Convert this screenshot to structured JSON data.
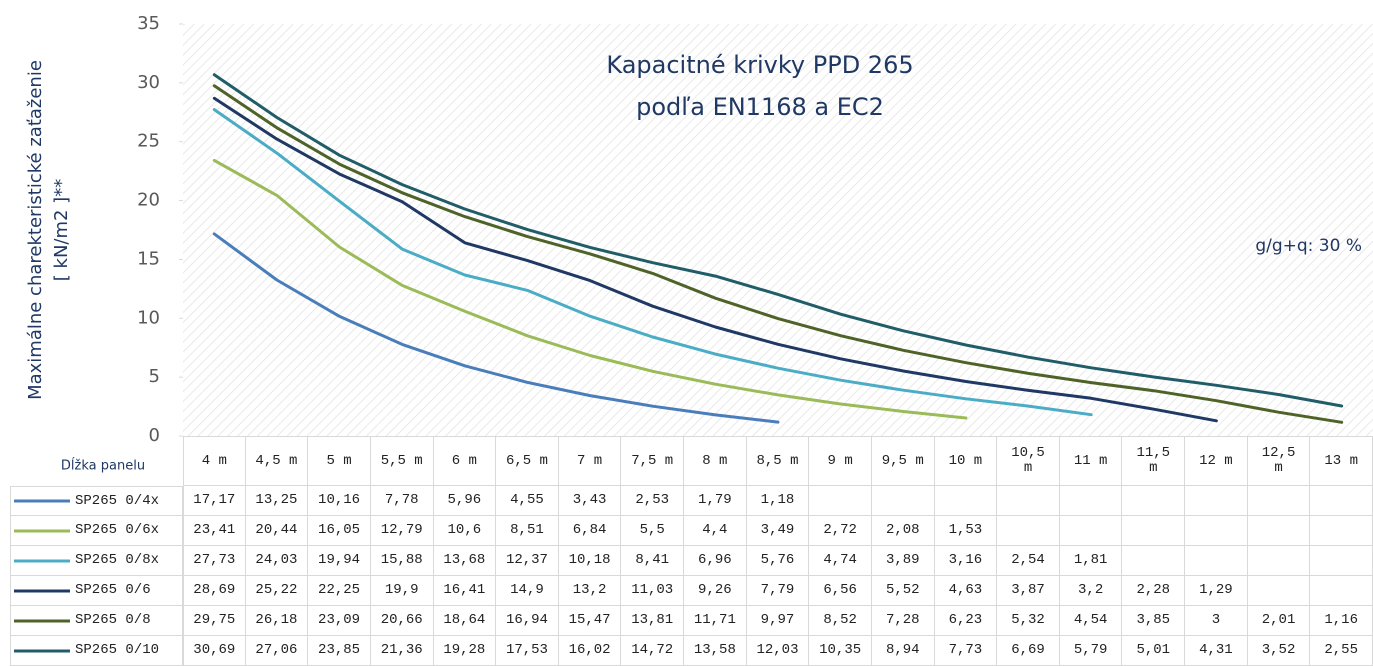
{
  "chart_data": {
    "type": "line",
    "title": [
      "Kapacitné krivky PPD 265",
      "podľa EN1168 a EC2"
    ],
    "y_label": [
      "Maximálne charekteristické zaťaženie",
      "[ kN/m2 ]**"
    ],
    "x_label": "Dĺžka panelu",
    "annotation": "g/g+q: 30 %",
    "categories": [
      "4 m",
      "4,5 m",
      "5 m",
      "5,5 m",
      "6 m",
      "6,5 m",
      "7 m",
      "7,5 m",
      "8 m",
      "8,5 m",
      "9 m",
      "9,5 m",
      "10 m",
      "10,5 m",
      "11 m",
      "11,5 m",
      "12 m",
      "12,5 m",
      "13 m"
    ],
    "ylim": [
      0,
      35
    ],
    "yticks": [
      0,
      5,
      10,
      15,
      20,
      25,
      30,
      35
    ],
    "series": [
      {
        "name": "SP265 0/4x",
        "color": "#4a7ebb",
        "values": [
          17.17,
          13.25,
          10.16,
          7.78,
          5.96,
          4.55,
          3.43,
          2.53,
          1.79,
          1.18,
          null,
          null,
          null,
          null,
          null,
          null,
          null,
          null,
          null
        ],
        "value_labels": [
          "17,17",
          "13,25",
          "10,16",
          "7,78",
          "5,96",
          "4,55",
          "3,43",
          "2,53",
          "1,79",
          "1,18",
          null,
          null,
          null,
          null,
          null,
          null,
          null,
          null,
          null
        ]
      },
      {
        "name": "SP265 0/6x",
        "color": "#9bbb59",
        "values": [
          23.41,
          20.44,
          16.05,
          12.79,
          10.6,
          8.51,
          6.84,
          5.5,
          4.4,
          3.49,
          2.72,
          2.08,
          1.53,
          null,
          null,
          null,
          null,
          null,
          null
        ],
        "value_labels": [
          "23,41",
          "20,44",
          "16,05",
          "12,79",
          "10,6",
          "8,51",
          "6,84",
          "5,5",
          "4,4",
          "3,49",
          "2,72",
          "2,08",
          "1,53",
          null,
          null,
          null,
          null,
          null,
          null
        ]
      },
      {
        "name": "SP265 0/8x",
        "color": "#4bacc6",
        "values": [
          27.73,
          24.03,
          19.94,
          15.88,
          13.68,
          12.37,
          10.18,
          8.41,
          6.96,
          5.76,
          4.74,
          3.89,
          3.16,
          2.54,
          1.81,
          null,
          null,
          null,
          null
        ],
        "value_labels": [
          "27,73",
          "24,03",
          "19,94",
          "15,88",
          "13,68",
          "12,37",
          "10,18",
          "8,41",
          "6,96",
          "5,76",
          "4,74",
          "3,89",
          "3,16",
          "2,54",
          "1,81",
          null,
          null,
          null,
          null
        ]
      },
      {
        "name": "SP265 0/6",
        "color": "#1f3864",
        "values": [
          28.69,
          25.22,
          22.25,
          19.9,
          16.41,
          14.9,
          13.2,
          11.03,
          9.26,
          7.79,
          6.56,
          5.52,
          4.63,
          3.87,
          3.2,
          2.28,
          1.29,
          null,
          null
        ],
        "value_labels": [
          "28,69",
          "25,22",
          "22,25",
          "19,9",
          "16,41",
          "14,9",
          "13,2",
          "11,03",
          "9,26",
          "7,79",
          "6,56",
          "5,52",
          "4,63",
          "3,87",
          "3,2",
          "2,28",
          "1,29",
          null,
          null
        ]
      },
      {
        "name": "SP265 0/8",
        "color": "#4f6228",
        "values": [
          29.75,
          26.18,
          23.09,
          20.66,
          18.64,
          16.94,
          15.47,
          13.81,
          11.71,
          9.97,
          8.52,
          7.28,
          6.23,
          5.32,
          4.54,
          3.85,
          3,
          2.01,
          1.16
        ],
        "value_labels": [
          "29,75",
          "26,18",
          "23,09",
          "20,66",
          "18,64",
          "16,94",
          "15,47",
          "13,81",
          "11,71",
          "9,97",
          "8,52",
          "7,28",
          "6,23",
          "5,32",
          "4,54",
          "3,85",
          "3",
          "2,01",
          "1,16"
        ]
      },
      {
        "name": "SP265 0/10",
        "color": "#215d68",
        "values": [
          30.69,
          27.06,
          23.85,
          21.36,
          19.28,
          17.53,
          16.02,
          14.72,
          13.58,
          12.03,
          10.35,
          8.94,
          7.73,
          6.69,
          5.79,
          5.01,
          4.31,
          3.52,
          2.55
        ],
        "value_labels": [
          "30,69",
          "27,06",
          "23,85",
          "21,36",
          "19,28",
          "17,53",
          "16,02",
          "14,72",
          "13,58",
          "12,03",
          "10,35",
          "8,94",
          "7,73",
          "6,69",
          "5,79",
          "5,01",
          "4,31",
          "3,52",
          "2,55"
        ]
      }
    ]
  }
}
